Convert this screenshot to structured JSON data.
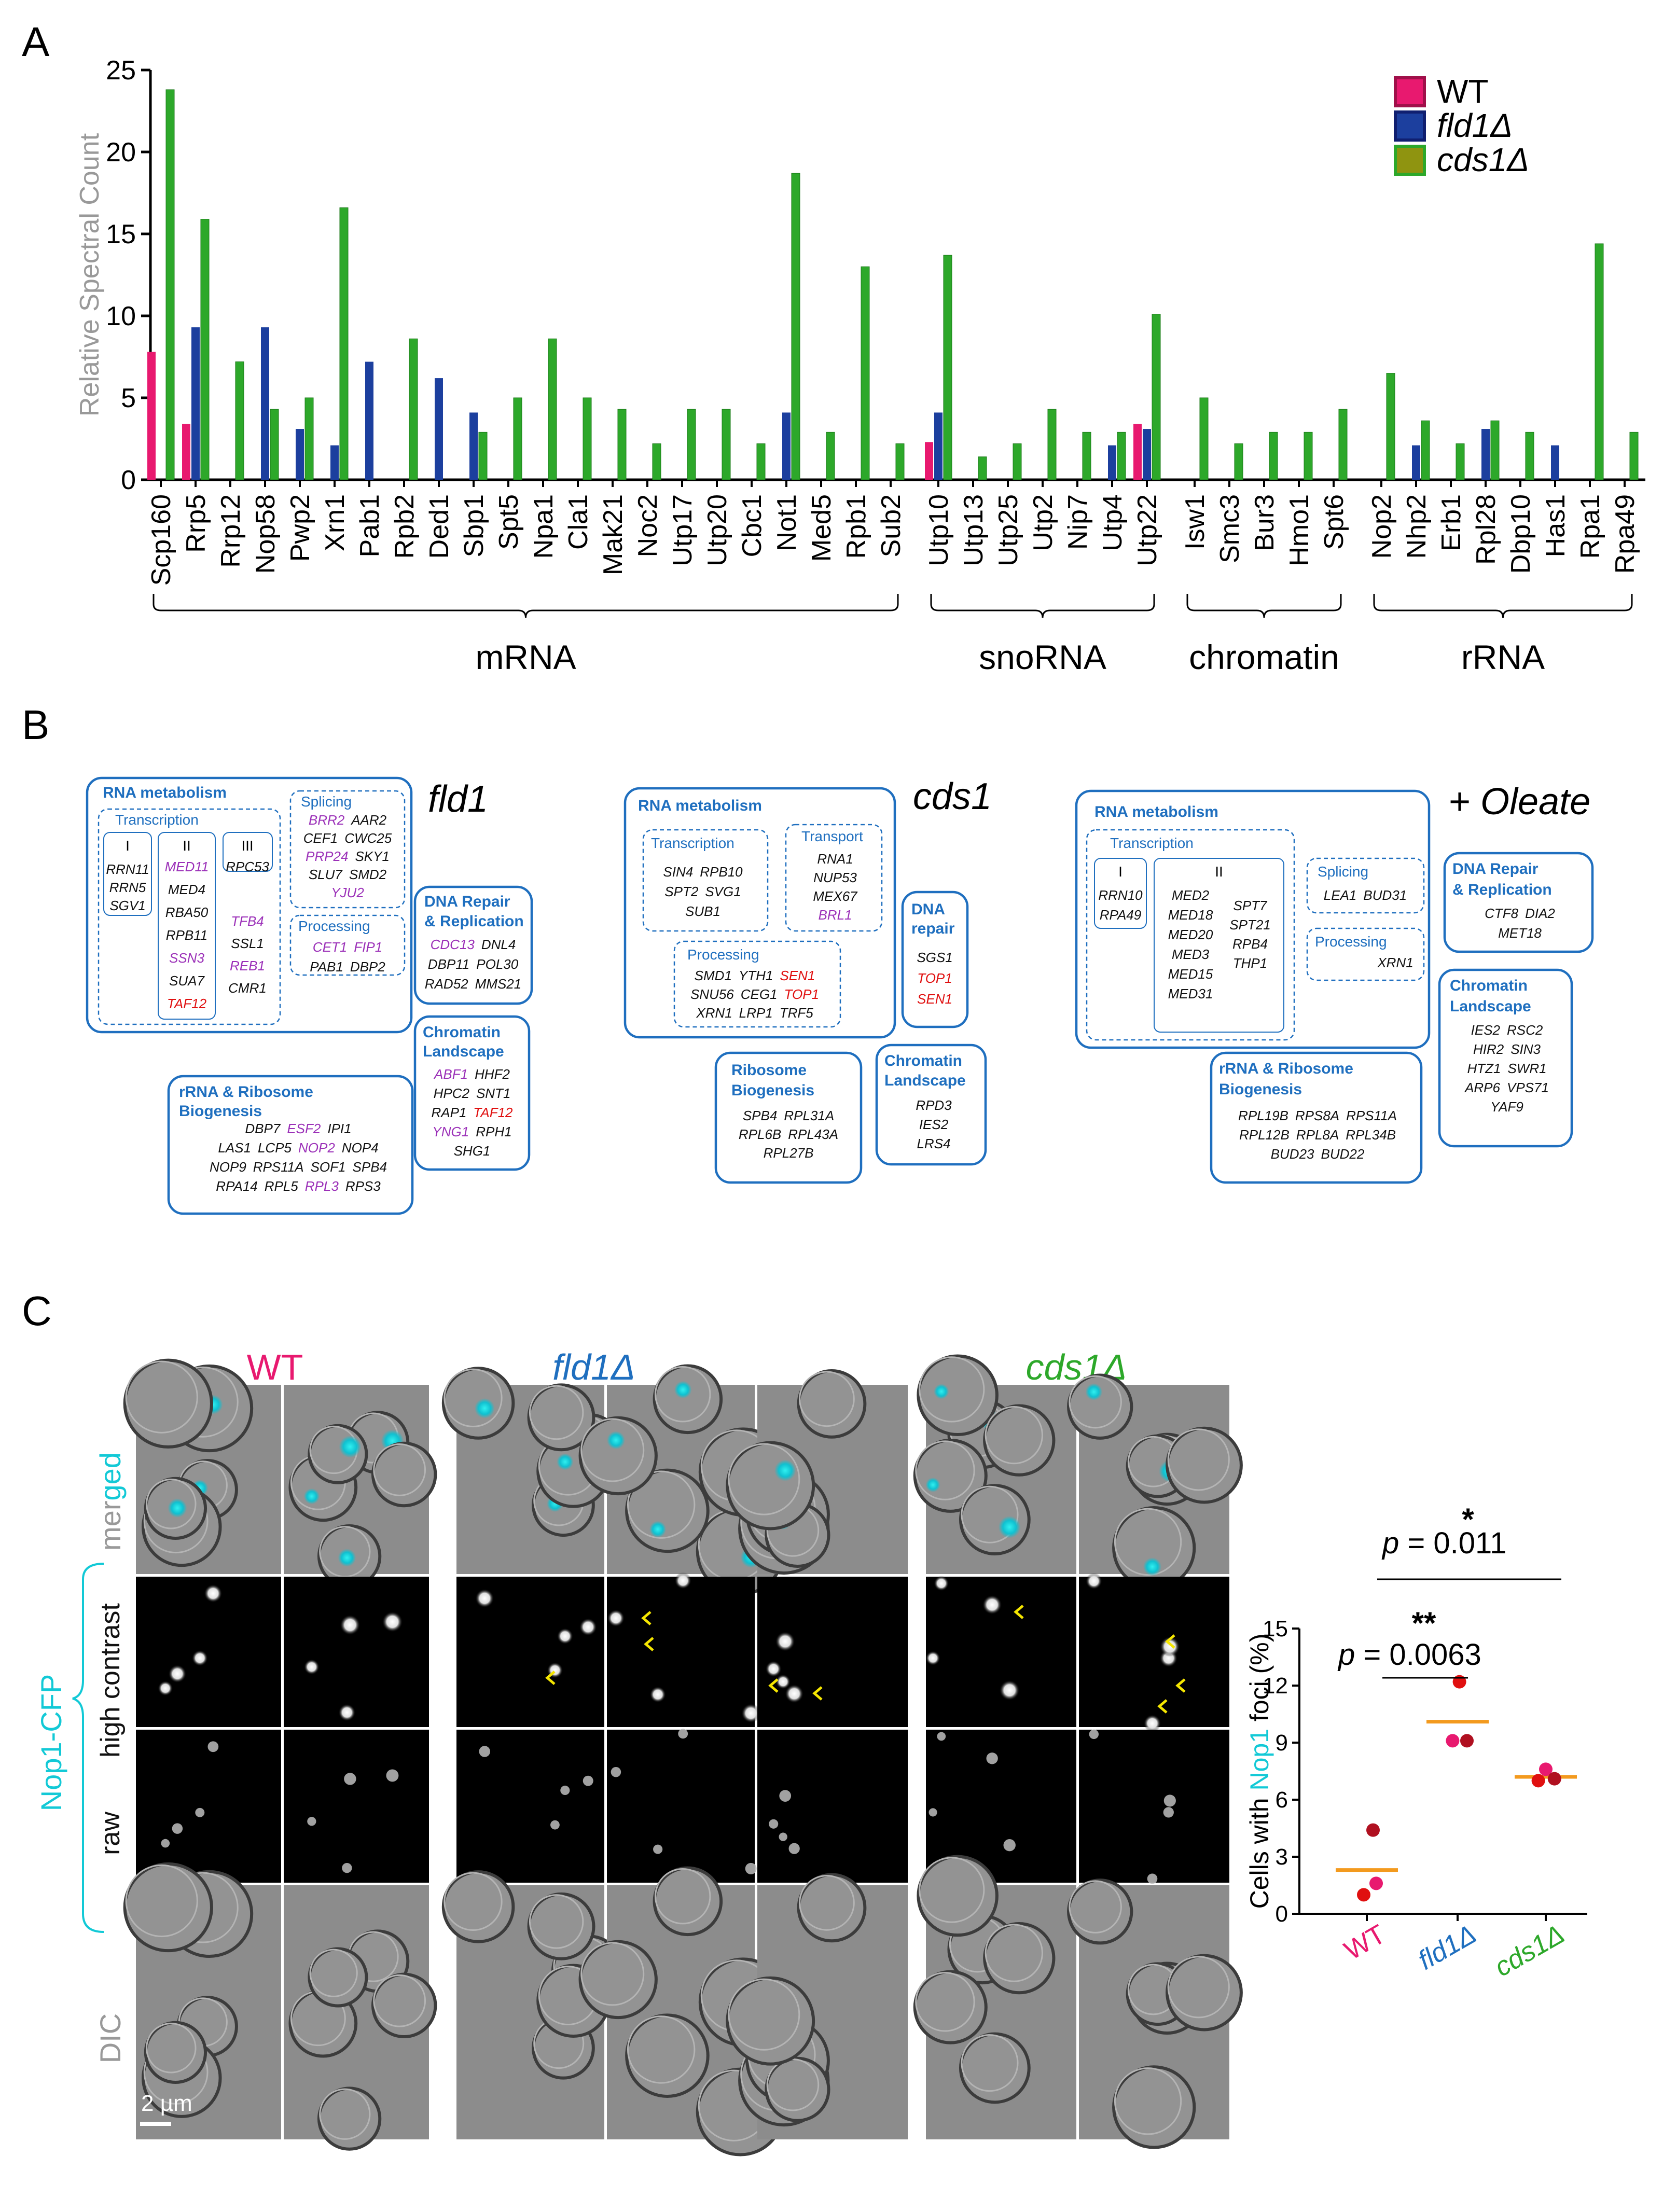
{
  "panel_labels": {
    "a": "A",
    "b": "B",
    "c": "C"
  },
  "colors": {
    "wt": "#e8196f",
    "fld1": "#1c3f9e",
    "cds1": "#2da82a",
    "cds1_legend": "#8f9410",
    "box": "#1f6fbf",
    "purple": "#9b30b8",
    "red": "#e01010",
    "orange": "#f39a1e",
    "cyan": "#12c9d6",
    "lightgray": "#999999"
  },
  "chart_data": [
    {
      "type": "bar",
      "panel": "A",
      "ylabel": "Relative Spectral Count",
      "ylim": [
        0,
        25
      ],
      "yticks": [
        0,
        5,
        10,
        15,
        20,
        25
      ],
      "legend": [
        "WT",
        "fld1Δ",
        "cds1Δ"
      ],
      "legend_position": "top-right",
      "categories": [
        "Scp160",
        "Rrp5",
        "Rrp12",
        "Nop58",
        "Pwp2",
        "Xrn1",
        "Pab1",
        "Rpb2",
        "Ded1",
        "Sbp1",
        "Spt5",
        "Npa1",
        "Cla1",
        "Mak21",
        "Noc2",
        "Utp17",
        "Utp20",
        "Cbc1",
        "Not1",
        "Med5",
        "Rpb1",
        "Sub2",
        "Utp10",
        "Utp13",
        "Utp25",
        "Utp2",
        "Nip7",
        "Utp4",
        "Utp22",
        "Isw1",
        "Smc3",
        "Bur3",
        "Hmo1",
        "Spt6",
        "Nop2",
        "Nhp2",
        "Erb1",
        "Rpl28",
        "Dbp10",
        "Has1",
        "Rpa1",
        "Rpa49"
      ],
      "groups": [
        {
          "name": "mRNA",
          "first": 0,
          "last": 21
        },
        {
          "name": "snoRNA",
          "first": 22,
          "last": 28
        },
        {
          "name": "chromatin",
          "first": 29,
          "last": 33
        },
        {
          "name": "rRNA",
          "first": 34,
          "last": 41
        }
      ],
      "series": [
        {
          "name": "WT",
          "values": [
            7.8,
            3.4,
            0,
            0,
            0,
            0,
            0,
            0,
            0,
            0,
            0,
            0,
            0,
            0,
            0,
            0,
            0,
            0,
            0,
            0,
            0,
            0,
            2.3,
            0,
            0,
            0,
            0,
            0,
            3.4,
            0,
            0,
            0,
            0,
            0,
            0,
            0,
            0,
            0,
            0,
            0,
            0,
            0
          ]
        },
        {
          "name": "fld1Δ",
          "values": [
            0,
            9.3,
            0,
            9.3,
            3.1,
            2.1,
            7.2,
            0,
            6.2,
            4.1,
            0,
            0,
            0,
            0,
            0,
            0,
            0,
            0,
            4.1,
            0,
            0,
            0,
            4.1,
            0,
            0,
            0,
            0,
            2.1,
            3.1,
            0,
            0,
            0,
            0,
            0,
            0,
            2.1,
            0,
            3.1,
            0,
            2.1,
            0,
            0
          ]
        },
        {
          "name": "cds1Δ",
          "values": [
            23.8,
            15.9,
            7.2,
            4.3,
            5.0,
            16.6,
            0,
            8.6,
            0,
            2.9,
            5.0,
            8.6,
            5.0,
            4.3,
            2.2,
            4.3,
            4.3,
            2.2,
            18.7,
            2.9,
            13.0,
            2.2,
            13.7,
            1.4,
            2.2,
            4.3,
            2.9,
            2.9,
            10.1,
            5.0,
            2.2,
            2.9,
            2.9,
            4.3,
            6.5,
            3.6,
            2.2,
            3.6,
            2.9,
            0,
            14.4,
            2.9
          ]
        }
      ]
    },
    {
      "type": "scatter",
      "panel": "C",
      "ylabel_parts": [
        "Cells with ",
        "Nop1",
        " foci (%)"
      ],
      "ylim": [
        0,
        15
      ],
      "yticks": [
        0,
        3,
        6,
        9,
        12,
        15
      ],
      "categories": [
        "WT",
        "fld1Δ",
        "cds1Δ"
      ],
      "points": [
        {
          "group": 0,
          "value": 4.4,
          "dx": 0.1,
          "color": "#b01020"
        },
        {
          "group": 0,
          "value": 1.6,
          "dx": 0.15,
          "color": "#e8196f"
        },
        {
          "group": 0,
          "value": 1.0,
          "dx": -0.05,
          "color": "#e01010"
        },
        {
          "group": 1,
          "value": 12.2,
          "dx": 0.03,
          "color": "#e01010"
        },
        {
          "group": 1,
          "value": 9.1,
          "dx": -0.08,
          "color": "#e8196f"
        },
        {
          "group": 1,
          "value": 9.1,
          "dx": 0.15,
          "color": "#b01020"
        },
        {
          "group": 2,
          "value": 7.6,
          "dx": 0.0,
          "color": "#e8196f"
        },
        {
          "group": 2,
          "value": 7.0,
          "dx": -0.12,
          "color": "#e01010"
        },
        {
          "group": 2,
          "value": 7.1,
          "dx": 0.14,
          "color": "#b01020"
        }
      ],
      "means": [
        2.3,
        10.1,
        7.2
      ],
      "annotations": [
        {
          "stars": "**",
          "p_label": "p",
          "p_text": " = 0.0063",
          "from": 0,
          "to": 1
        },
        {
          "stars": "*",
          "p_label": "p",
          "p_text": " = 0.011",
          "from": 0,
          "to": 2
        }
      ]
    }
  ],
  "panel_b": {
    "titles": {
      "fld1": "fld1",
      "cds1": "cds1",
      "oleate": "+ Oleate"
    },
    "fld1": {
      "rna_metabolism": "RNA metabolism",
      "transcription": "Transcription",
      "pol1": {
        "label": "I",
        "genes": [
          "RRN11",
          "RRN5",
          "SGV1"
        ]
      },
      "pol2": {
        "label": "II",
        "genes": [
          {
            "t": "MED11",
            "c": "p"
          },
          {
            "t": "MED4"
          },
          {
            "t": "RBA50"
          },
          {
            "t": "RPB11"
          },
          {
            "t": "SSN3",
            "c": "p"
          },
          {
            "t": "SUA7"
          },
          {
            "t": "TAF12",
            "c": "r"
          }
        ]
      },
      "pol3": {
        "label": "III",
        "genes": [
          "RPC53"
        ]
      },
      "pol_extra": [
        {
          "t": "TFB4",
          "c": "p"
        },
        {
          "t": "SSL1"
        },
        {
          "t": "REB1",
          "c": "p"
        },
        {
          "t": "CMR1"
        }
      ],
      "splicing": "Splicing",
      "splicing_genes": [
        [
          {
            "t": "BRR2",
            "c": "p"
          },
          {
            "t": "AAR2"
          }
        ],
        [
          {
            "t": "CEF1"
          },
          {
            "t": "CWC25"
          }
        ],
        [
          {
            "t": "PRP24",
            "c": "p"
          },
          {
            "t": "SKY1"
          }
        ],
        [
          {
            "t": "SLU7"
          },
          {
            "t": "SMD2"
          }
        ],
        [
          {
            "t": "YJU2",
            "c": "p"
          }
        ]
      ],
      "processing": "Processing",
      "processing_genes": [
        [
          {
            "t": "CET1",
            "c": "p"
          },
          {
            "t": "FIP1",
            "c": "p"
          }
        ],
        [
          {
            "t": "PAB1"
          },
          {
            "t": "DBP2"
          }
        ]
      ],
      "dna_repair": "DNA Repair\n& Replication",
      "dna_repair_title_l1": "DNA Repair",
      "dna_repair_title_l2": "& Replication",
      "dna_genes": [
        [
          {
            "t": "CDC13",
            "c": "p"
          },
          {
            "t": "DNL4"
          }
        ],
        [
          {
            "t": "DBP11"
          },
          {
            "t": "POL30"
          }
        ],
        [
          {
            "t": "RAD52"
          },
          {
            "t": "MMS21"
          }
        ]
      ],
      "rrna_title_l1": "rRNA & Ribosome",
      "rrna_title_l2": "Biogenesis",
      "rrna_genes": [
        [
          {
            "t": "DBP7"
          },
          {
            "t": "ESF2",
            "c": "p"
          },
          {
            "t": "IPI1"
          }
        ],
        [
          {
            "t": "LAS1"
          },
          {
            "t": "LCP5"
          },
          {
            "t": "NOP2",
            "c": "p"
          },
          {
            "t": "NOP4"
          }
        ],
        [
          {
            "t": "NOP9"
          },
          {
            "t": "RPS11A"
          },
          {
            "t": "SOF1"
          },
          {
            "t": "SPB4"
          }
        ],
        [
          {
            "t": "RPA14"
          },
          {
            "t": "RPL5"
          },
          {
            "t": "RPL3",
            "c": "p"
          },
          {
            "t": "RPS3"
          }
        ]
      ],
      "chromatin_title_l1": "Chromatin",
      "chromatin_title_l2": "Landscape",
      "chromatin_genes": [
        [
          {
            "t": "ABF1",
            "c": "p"
          },
          {
            "t": "HHF2"
          }
        ],
        [
          {
            "t": "HPC2"
          },
          {
            "t": "SNT1"
          }
        ],
        [
          {
            "t": "RAP1"
          },
          {
            "t": "TAF12",
            "c": "r"
          }
        ],
        [
          {
            "t": "YNG1",
            "c": "p"
          },
          {
            "t": "RPH1"
          }
        ],
        [
          {
            "t": "SHG1"
          }
        ]
      ]
    },
    "cds1": {
      "rna_metabolism": "RNA metabolism",
      "transcription": "Transcription",
      "transcription_genes": [
        [
          "SIN4",
          "RPB10"
        ],
        [
          "SPT2",
          "SVG1"
        ],
        [
          "SUB1"
        ]
      ],
      "transport": "Transport",
      "transport_genes": [
        [
          {
            "t": "RNA1"
          }
        ],
        [
          {
            "t": "NUP53"
          }
        ],
        [
          {
            "t": "MEX67"
          }
        ],
        [
          {
            "t": "BRL1",
            "c": "p"
          }
        ]
      ],
      "processing": "Processing",
      "processing_genes": [
        [
          {
            "t": "SMD1"
          },
          {
            "t": "YTH1"
          },
          {
            "t": "SEN1",
            "c": "r"
          }
        ],
        [
          {
            "t": "SNU56"
          },
          {
            "t": "CEG1"
          },
          {
            "t": "TOP1",
            "c": "r"
          }
        ],
        [
          {
            "t": "XRN1"
          },
          {
            "t": "LRP1"
          },
          {
            "t": "TRF5"
          }
        ]
      ],
      "dna_title_l1": "DNA",
      "dna_title_l2": "repair",
      "dna_genes": [
        [
          {
            "t": "SGS1"
          }
        ],
        [
          {
            "t": "TOP1",
            "c": "r"
          }
        ],
        [
          {
            "t": "SEN1",
            "c": "r"
          }
        ]
      ],
      "ribosome_title_l1": "Ribosome",
      "ribosome_title_l2": "Biogenesis",
      "ribosome_genes": [
        [
          "SPB4",
          "RPL31A"
        ],
        [
          "RPL6B",
          "RPL43A"
        ],
        [
          "RPL27B"
        ]
      ],
      "chromatin_title_l1": "Chromatin",
      "chromatin_title_l2": "Landscape",
      "chromatin_genes": [
        "RPD3",
        "IES2",
        "LRS4"
      ]
    },
    "oleate": {
      "rna_metabolism": "RNA metabolism",
      "transcription": "Transcription",
      "pol1": {
        "label": "I",
        "genes": [
          "RRN10",
          "RPA49"
        ]
      },
      "pol2": {
        "label": "II",
        "genes": [
          [
            "MED2",
            ""
          ],
          [
            "MED18",
            "SPT7"
          ],
          [
            "MED20",
            "SPT21"
          ],
          [
            "MED3",
            "RPB4"
          ],
          [
            "MED15",
            "THP1"
          ],
          [
            "MED31",
            ""
          ]
        ]
      },
      "splicing": "Splicing",
      "splicing_genes": [
        "LEA1",
        "BUD31"
      ],
      "processing": "Processing",
      "processing_genes": [
        "XRN1"
      ],
      "dna_title_l1": "DNA Repair",
      "dna_title_l2": "& Replication",
      "dna_genes": [
        [
          "CTF8",
          "DIA2"
        ],
        [
          "MET18"
        ]
      ],
      "rrna_title_l1": "rRNA & Ribosome",
      "rrna_title_l2": "Biogenesis",
      "rrna_genes": [
        [
          "RPL19B",
          "RPS8A",
          "RPS11A"
        ],
        [
          "RPL12B",
          "RPL8A",
          "RPL34B"
        ],
        [
          "BUD23",
          "BUD22"
        ]
      ],
      "chromatin_title_l1": "Chromatin",
      "chromatin_title_l2": "Landscape",
      "chromatin_genes": [
        [
          "IES2",
          "RSC2"
        ],
        [
          "HIR2",
          "SIN3"
        ],
        [
          "HTZ1",
          "SWR1"
        ],
        [
          "ARP6",
          "VPS71"
        ],
        [
          "YAF9"
        ]
      ]
    }
  },
  "panel_c": {
    "col_titles": [
      {
        "t": "WT",
        "c": "wt"
      },
      {
        "t": "fld1Δ",
        "c": "fld1"
      },
      {
        "t": "cds1Δ",
        "c": "cds1"
      }
    ],
    "row_labels": {
      "merged_a": "merged",
      "high_contrast": "high contrast",
      "raw": "raw",
      "dic": "DIC",
      "nop1": "Nop1-CFP"
    },
    "merged_parts": [
      "mer",
      "ged"
    ],
    "scale_bar": "2 µm",
    "x_labels": [
      "WT",
      "fld1Δ",
      "cds1Δ"
    ]
  }
}
